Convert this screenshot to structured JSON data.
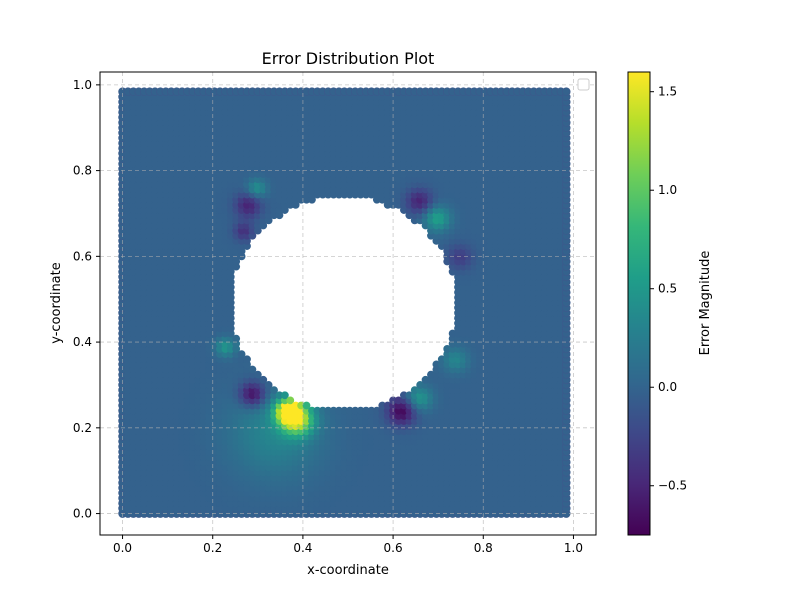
{
  "chart_data": {
    "type": "scatter",
    "title": "Error Distribution Plot",
    "xlabel": "x-coordinate",
    "ylabel": "y-coordinate",
    "xlim": [
      -0.05,
      1.05
    ],
    "ylim": [
      -0.05,
      1.03
    ],
    "xticks": [
      "0.0",
      "0.2",
      "0.4",
      "0.6",
      "0.8",
      "1.0"
    ],
    "xtick_values": [
      0.0,
      0.2,
      0.4,
      0.6,
      0.8,
      1.0
    ],
    "yticks": [
      "0.0",
      "0.2",
      "0.4",
      "0.6",
      "0.8",
      "1.0"
    ],
    "ytick_values": [
      0.0,
      0.2,
      0.4,
      0.6,
      0.8,
      1.0
    ],
    "grid": true,
    "legend": "top-right (empty)",
    "domain": {
      "x_range": [
        0.0,
        0.99
      ],
      "y_range": [
        0.0,
        0.99
      ],
      "hole_center": [
        0.49,
        0.49
      ],
      "hole_radius": 0.25,
      "grid_step": 0.012
    },
    "background_error": -0.02,
    "error_hotspots": [
      {
        "x": 0.37,
        "y": 0.24,
        "value": 1.6,
        "spread": 0.02
      },
      {
        "x": 0.39,
        "y": 0.22,
        "value": 1.2,
        "spread": 0.025
      },
      {
        "x": 0.34,
        "y": 0.19,
        "value": 0.35,
        "spread": 0.07
      },
      {
        "x": 0.29,
        "y": 0.28,
        "value": -0.7,
        "spread": 0.02
      },
      {
        "x": 0.62,
        "y": 0.24,
        "value": -0.7,
        "spread": 0.022
      },
      {
        "x": 0.66,
        "y": 0.73,
        "value": -0.5,
        "spread": 0.02
      },
      {
        "x": 0.28,
        "y": 0.72,
        "value": -0.5,
        "spread": 0.02
      },
      {
        "x": 0.27,
        "y": 0.66,
        "value": -0.4,
        "spread": 0.015
      },
      {
        "x": 0.7,
        "y": 0.69,
        "value": 0.6,
        "spread": 0.02
      },
      {
        "x": 0.66,
        "y": 0.27,
        "value": 0.5,
        "spread": 0.02
      },
      {
        "x": 0.23,
        "y": 0.39,
        "value": 0.5,
        "spread": 0.015
      },
      {
        "x": 0.74,
        "y": 0.36,
        "value": 0.35,
        "spread": 0.02
      },
      {
        "x": 0.3,
        "y": 0.76,
        "value": 0.45,
        "spread": 0.015
      },
      {
        "x": 0.75,
        "y": 0.6,
        "value": -0.3,
        "spread": 0.02
      }
    ],
    "colorbar": {
      "label": "Error Magnitude",
      "min": -0.75,
      "max": 1.6,
      "ticks": [
        "−0.5",
        "0.0",
        "0.5",
        "1.0",
        "1.5"
      ],
      "tick_values": [
        -0.5,
        0.0,
        0.5,
        1.0,
        1.5
      ],
      "colormap": "viridis",
      "colors": [
        "#440154",
        "#482878",
        "#3e4989",
        "#31688e",
        "#26828e",
        "#1f9e89",
        "#35b779",
        "#6ece58",
        "#b5de2b",
        "#fde725"
      ]
    },
    "point_edge_color": "#3b5b8c"
  }
}
